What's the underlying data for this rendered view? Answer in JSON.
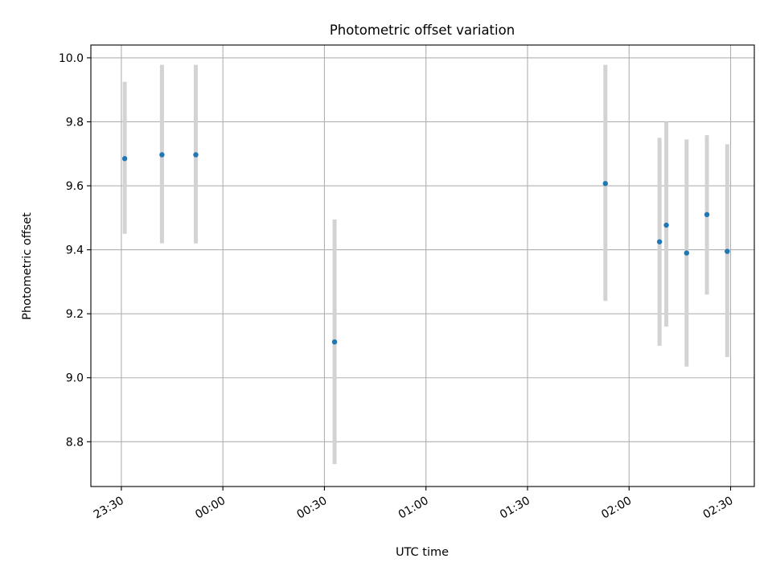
{
  "chart_data": {
    "type": "scatter",
    "title": "Photometric offset variation",
    "xlabel": "UTC time",
    "ylabel": "Photometric offset",
    "x_axis_kind": "time",
    "xlim": [
      "23:21",
      "02:37"
    ],
    "ylim": [
      8.66,
      10.04
    ],
    "x_ticks": [
      "23:30",
      "00:00",
      "00:30",
      "01:00",
      "01:30",
      "02:00",
      "02:30"
    ],
    "y_ticks": [
      "8.8",
      "9.0",
      "9.2",
      "9.4",
      "9.6",
      "9.8",
      "10.0"
    ],
    "grid": true,
    "x_tick_rotation": "30 degrees",
    "series": [
      {
        "x": [
          "23:31",
          "23:42",
          "23:52",
          "00:33",
          "01:53",
          "02:09",
          "02:11",
          "02:17",
          "02:23",
          "02:29"
        ],
        "y": [
          9.685,
          9.697,
          9.697,
          9.112,
          9.607,
          9.425,
          9.477,
          9.39,
          9.51,
          9.395
        ],
        "y_err_low": [
          9.45,
          9.42,
          9.42,
          8.73,
          9.24,
          9.1,
          9.16,
          9.035,
          9.26,
          9.065
        ],
        "y_err_high": [
          9.925,
          9.978,
          9.978,
          9.495,
          9.978,
          9.75,
          9.8,
          9.745,
          9.758,
          9.73
        ]
      }
    ],
    "colors": {
      "marker": "#1f77b4",
      "errorbar": "#d3d3d3",
      "grid": "#b0b0b0",
      "axes": "#000000"
    }
  }
}
